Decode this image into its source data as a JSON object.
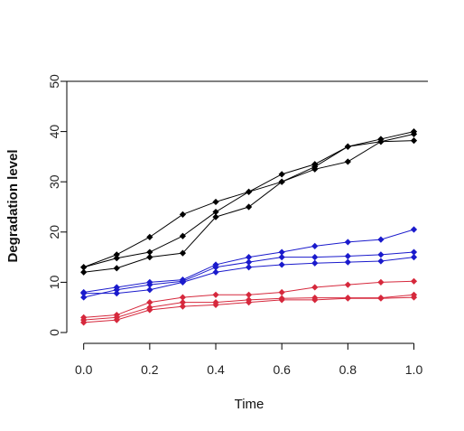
{
  "chart_data": {
    "type": "line",
    "title": "",
    "xlabel": "Time",
    "ylabel": "Degradation level",
    "xlim": [
      0,
      1
    ],
    "ylim": [
      0,
      50
    ],
    "x_ticks": [
      "0.0",
      "0.2",
      "0.4",
      "0.6",
      "0.8",
      "1.0"
    ],
    "y_ticks": [
      "0",
      "10",
      "20",
      "30",
      "40",
      "50"
    ],
    "grid": false,
    "legend": "none",
    "x": [
      0.0,
      0.1,
      0.2,
      0.3,
      0.4,
      0.5,
      0.6,
      0.7,
      0.8,
      0.9,
      1.0
    ],
    "series": [
      {
        "color": "#000000",
        "values": [
          13.0,
          15.5,
          19.0,
          23.5,
          26.0,
          28.0,
          30.0,
          33.0,
          37.0,
          38.5,
          40.0
        ]
      },
      {
        "color": "#000000",
        "values": [
          13.0,
          14.8,
          16.0,
          19.2,
          24.0,
          28.0,
          31.5,
          33.5,
          37.0,
          38.0,
          39.5
        ]
      },
      {
        "color": "#000000",
        "values": [
          12.0,
          12.8,
          15.0,
          15.8,
          23.0,
          25.0,
          30.0,
          32.5,
          34.0,
          38.0,
          38.2
        ]
      },
      {
        "color": "#1a1acc",
        "values": [
          8.0,
          9.0,
          10.0,
          10.5,
          13.5,
          15.0,
          16.0,
          17.2,
          18.0,
          18.5,
          20.5
        ]
      },
      {
        "color": "#1a1acc",
        "values": [
          7.0,
          8.5,
          9.5,
          10.2,
          13.0,
          14.0,
          15.0,
          15.0,
          15.2,
          15.5,
          16.0
        ]
      },
      {
        "color": "#1a1acc",
        "values": [
          7.8,
          7.8,
          8.5,
          10.0,
          12.0,
          13.0,
          13.5,
          13.8,
          14.0,
          14.2,
          15.0
        ]
      },
      {
        "color": "#d6283c",
        "values": [
          3.0,
          3.5,
          6.0,
          7.0,
          7.5,
          7.5,
          8.0,
          9.0,
          9.5,
          10.0,
          10.2
        ]
      },
      {
        "color": "#d6283c",
        "values": [
          2.5,
          3.0,
          5.0,
          6.0,
          6.0,
          6.5,
          6.8,
          6.9,
          6.9,
          6.9,
          7.5
        ]
      },
      {
        "color": "#d6283c",
        "values": [
          2.0,
          2.5,
          4.5,
          5.2,
          5.5,
          6.0,
          6.5,
          6.5,
          6.8,
          6.8,
          7.0
        ]
      }
    ]
  }
}
